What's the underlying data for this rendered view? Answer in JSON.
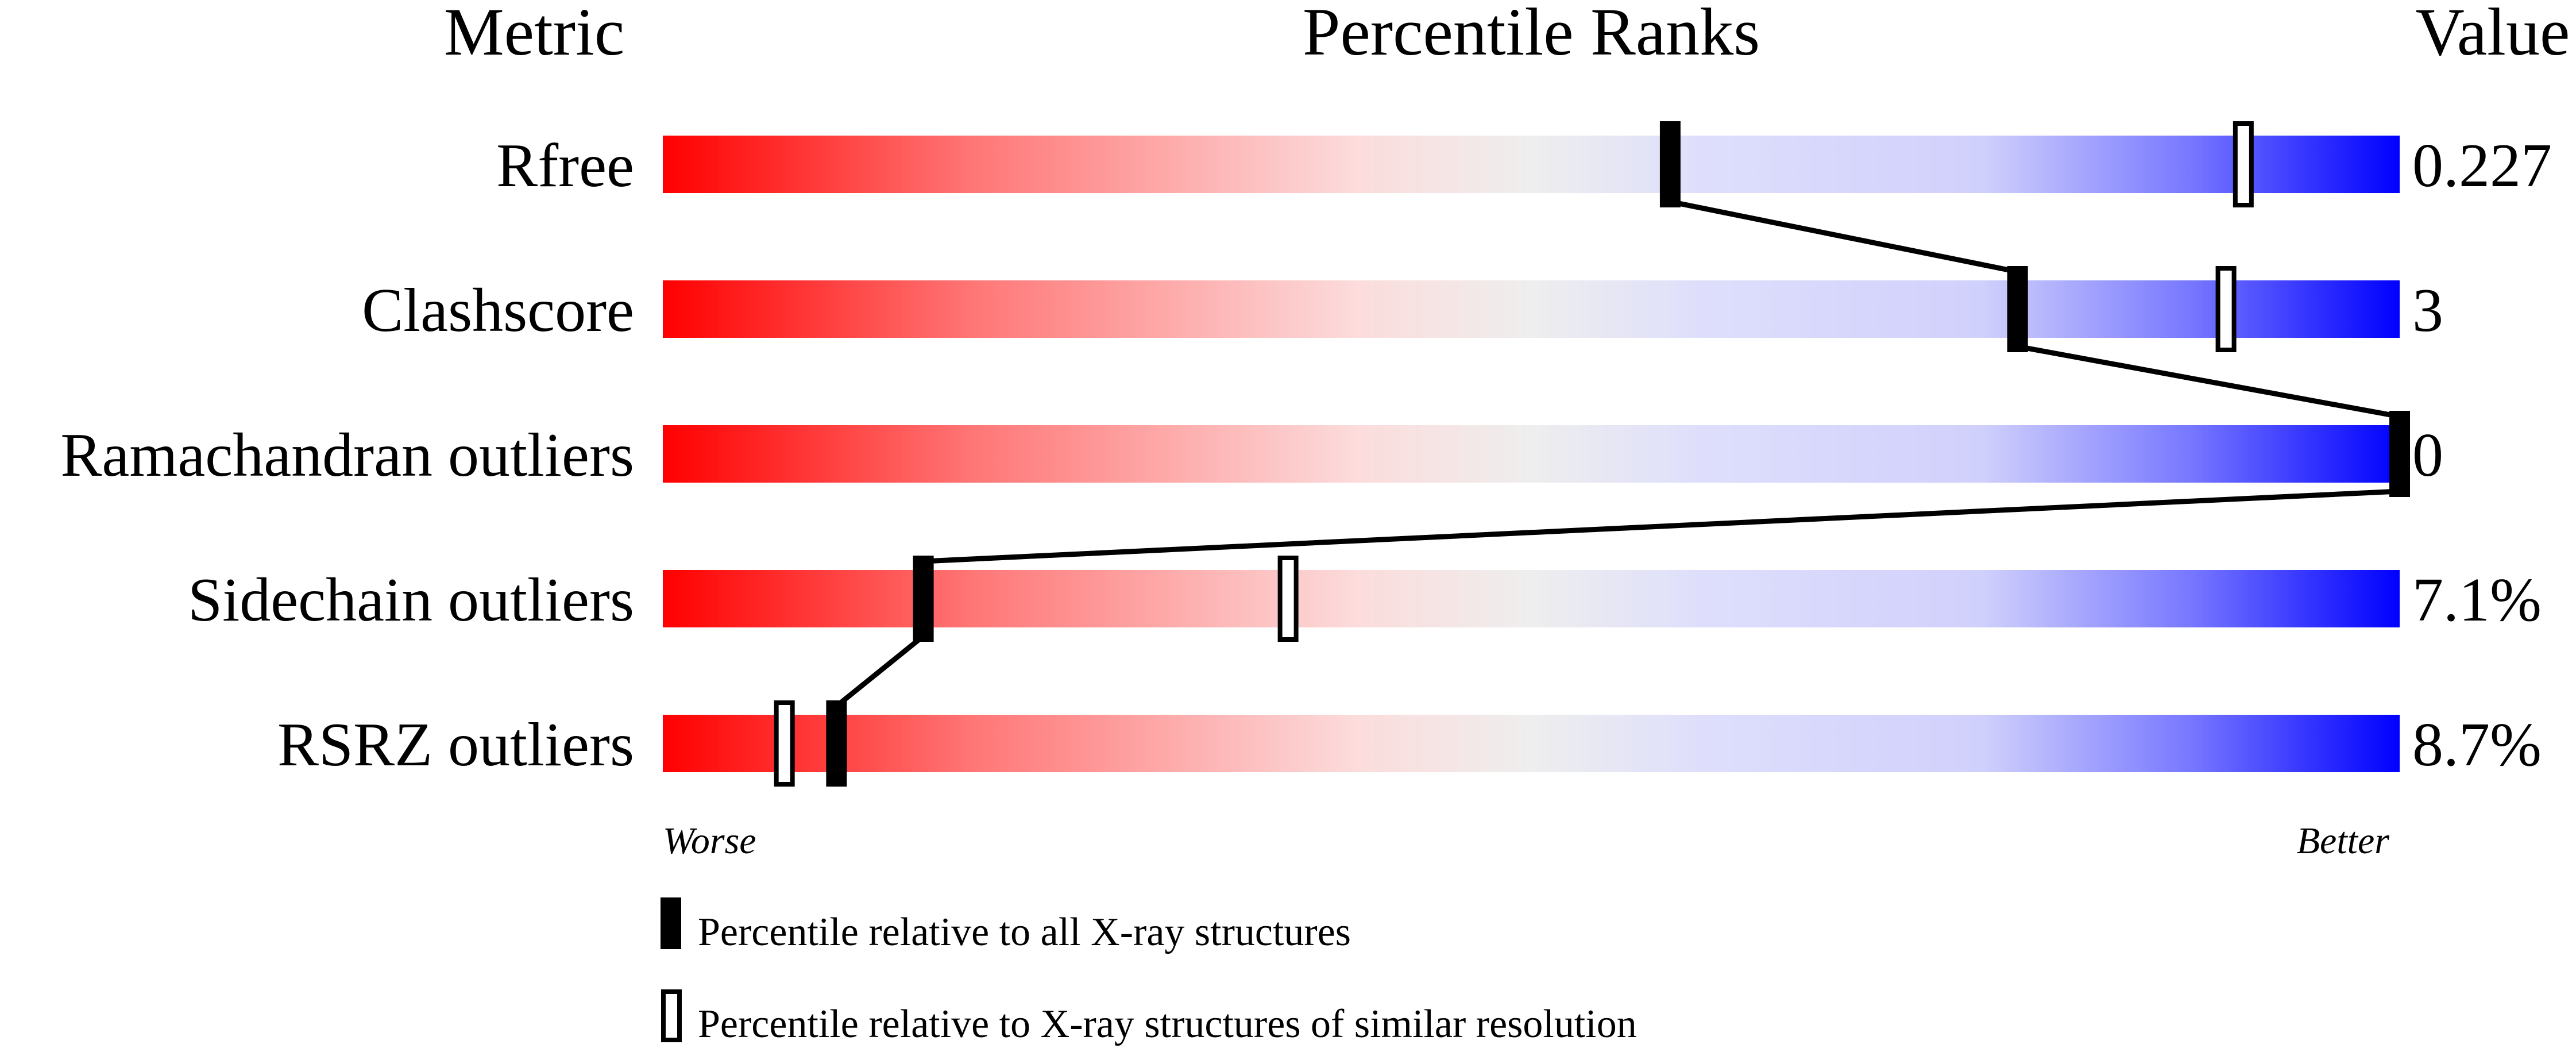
{
  "chart_data": {
    "type": "percentile-slider",
    "headers": {
      "metric": "Metric",
      "ranks": "Percentile Ranks",
      "value": "Value"
    },
    "xlim": [
      0,
      100
    ],
    "axis_labels": {
      "left": "Worse",
      "right": "Better"
    },
    "gradient_colors": [
      "#ff0000",
      "#ff7777",
      "#fcdcdc",
      "#eeeeee",
      "#dedefc",
      "#d0d0fc",
      "#7777ff",
      "#0000ff"
    ],
    "metrics": [
      {
        "name": "Rfree",
        "value": "0.227",
        "percentile_all": 58,
        "percentile_similar": 91
      },
      {
        "name": "Clashscore",
        "value": "3",
        "percentile_all": 78,
        "percentile_similar": 90
      },
      {
        "name": "Ramachandran outliers",
        "value": "0",
        "percentile_all": 100,
        "percentile_similar": 100
      },
      {
        "name": "Sidechain outliers",
        "value": "7.1%",
        "percentile_all": 15,
        "percentile_similar": 36
      },
      {
        "name": "RSRZ outliers",
        "value": "8.7%",
        "percentile_all": 10,
        "percentile_similar": 7
      }
    ],
    "legend": {
      "all": "Percentile relative to all X-ray structures",
      "similar": "Percentile relative to X-ray structures of similar resolution"
    }
  }
}
